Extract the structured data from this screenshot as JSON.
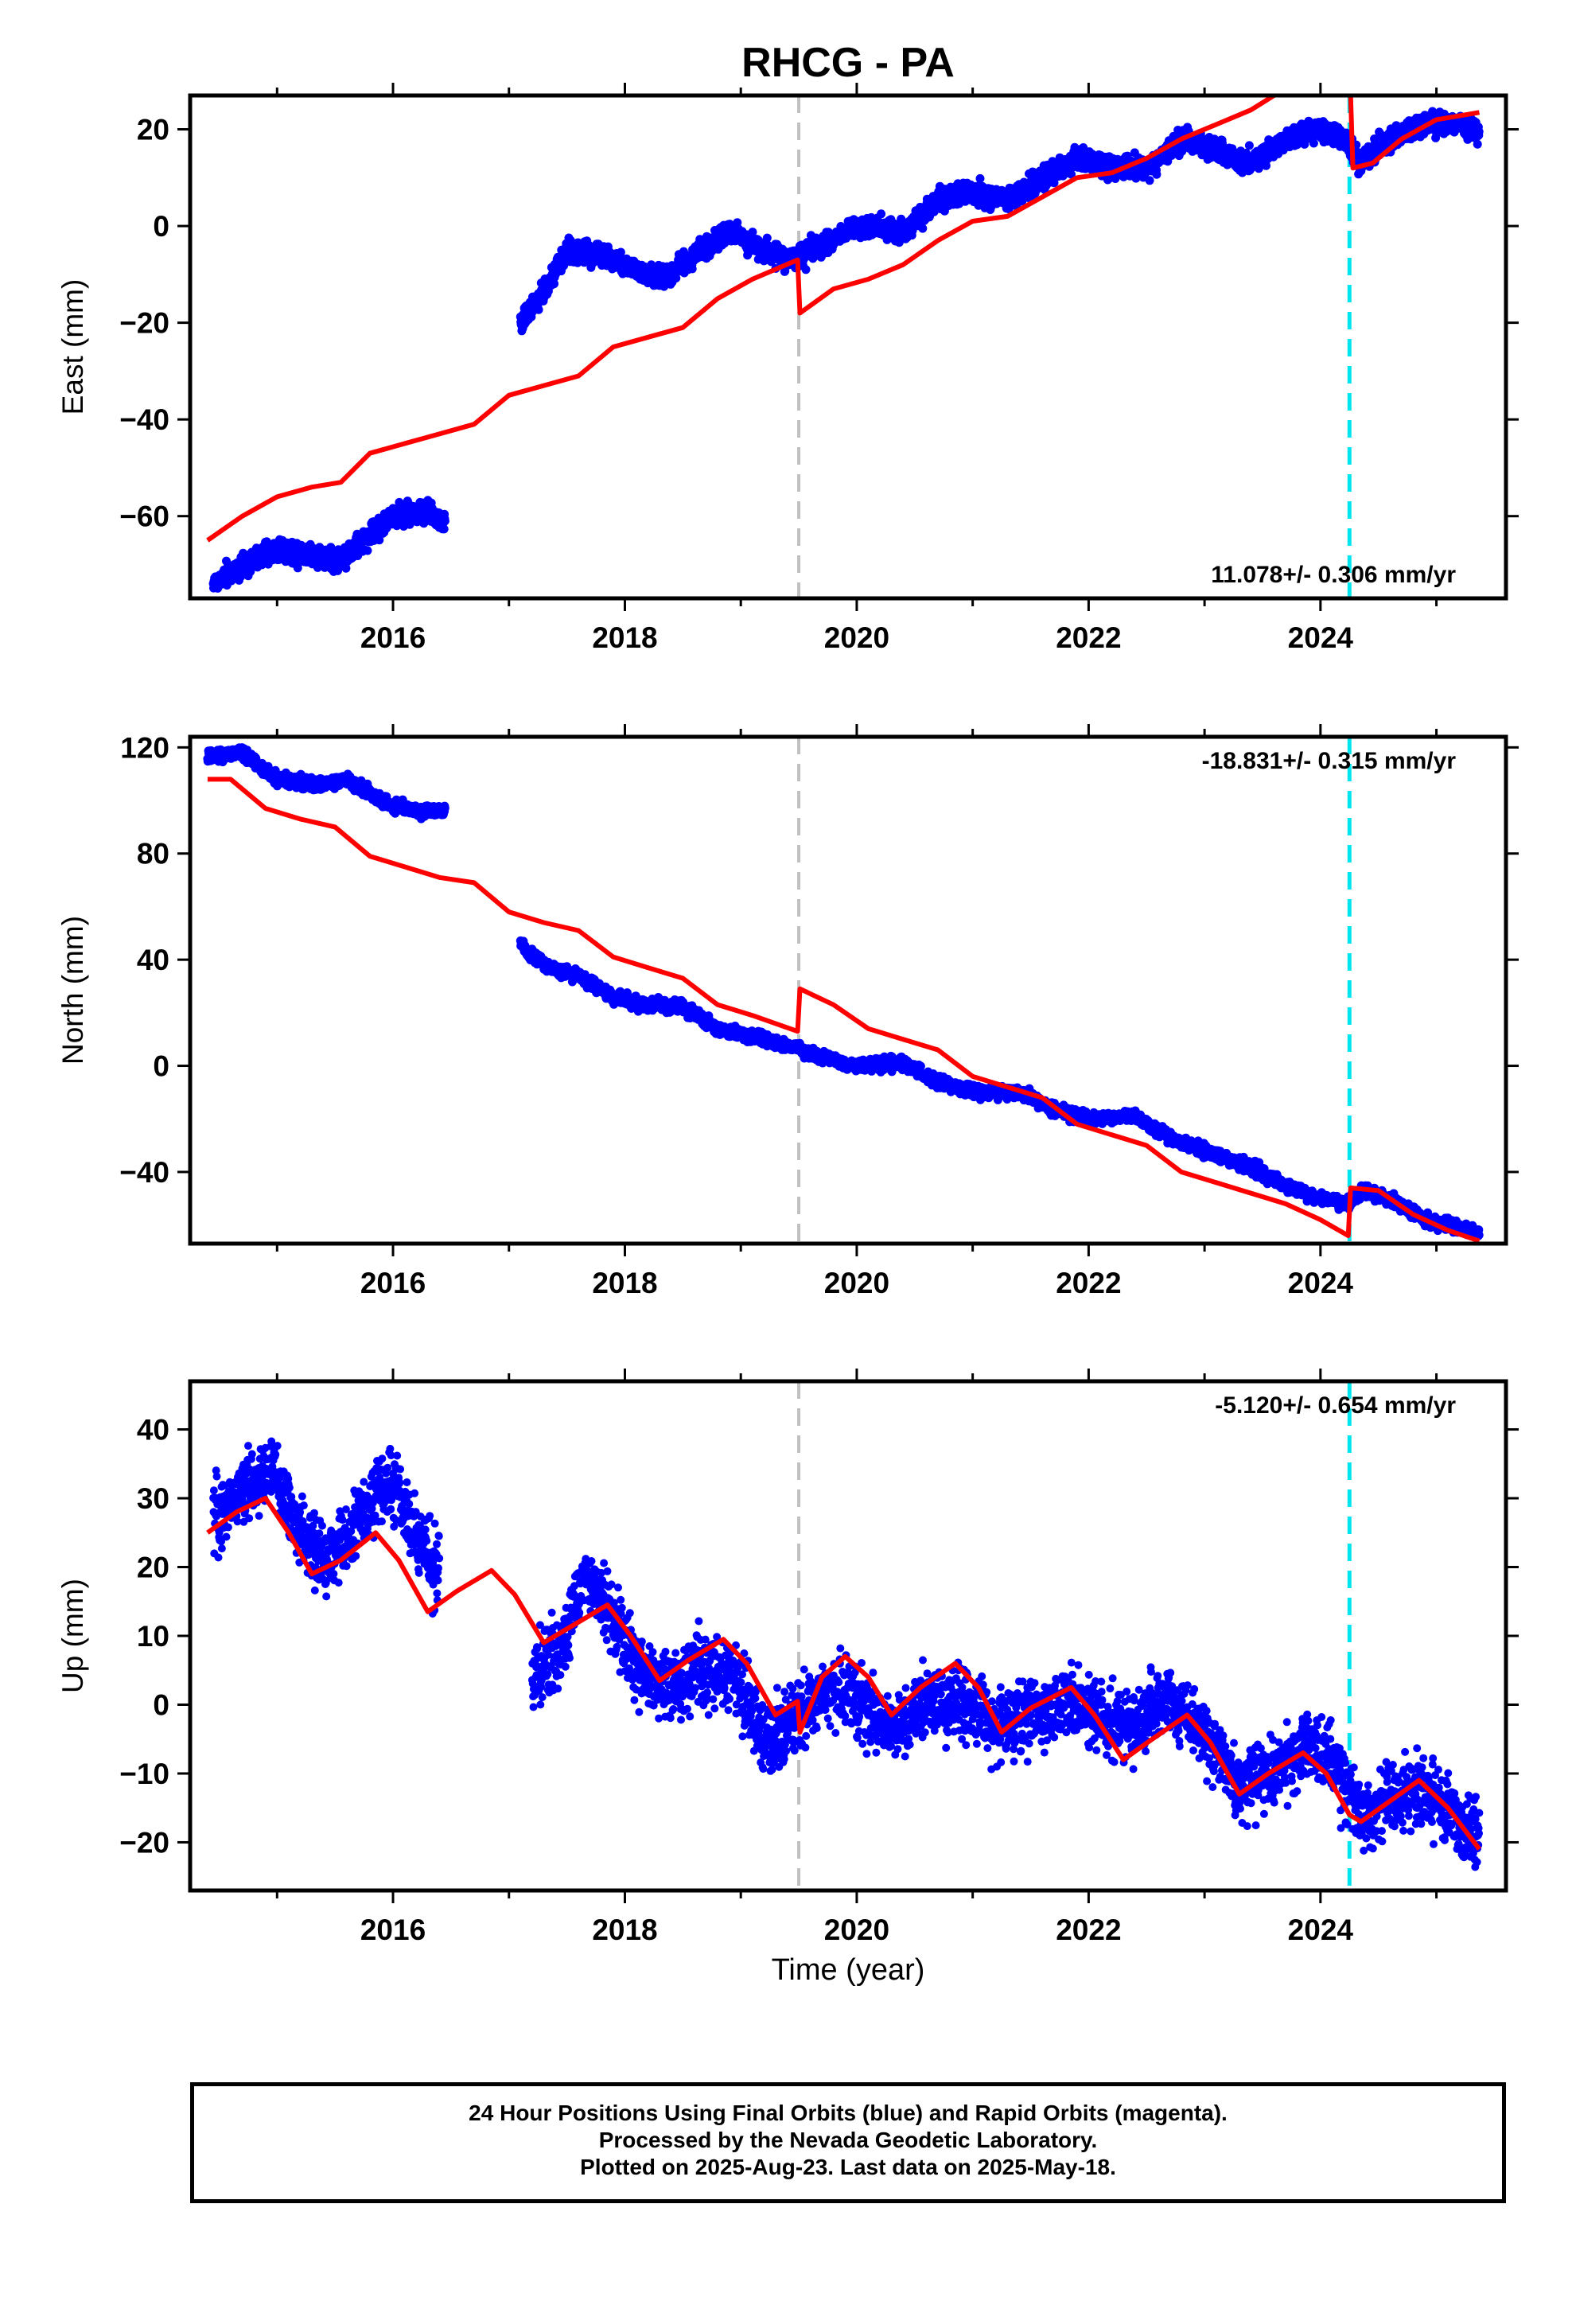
{
  "title": "RHCG - PA",
  "xlabel": "Time (year)",
  "footer": {
    "line1": "24 Hour Positions Using Final Orbits (blue) and Rapid Orbits (magenta).",
    "line2": "Processed by the Nevada Geodetic Laboratory.",
    "line3": "Plotted on 2025-Aug-23. Last data on 2025-May-18."
  },
  "colors": {
    "final_orbits": "#0000ff",
    "model": "#ff0000",
    "event_equipment": "#c0c0c0",
    "event_earthquake": "#00e5ee"
  },
  "chart_data": [
    {
      "type": "scatter",
      "panel": "east",
      "ylabel": "East (mm)",
      "xlim": [
        2014.25,
        2025.6
      ],
      "ylim": [
        -77,
        27
      ],
      "xticks": [
        2016,
        2018,
        2020,
        2022,
        2024
      ],
      "yticks": [
        -60,
        -40,
        -20,
        0,
        20
      ],
      "rate_label": "11.078+/- 0.306 mm/yr",
      "rate_position": "bottom-right",
      "events": [
        {
          "x": 2019.5,
          "kind": "equipment"
        },
        {
          "x": 2024.25,
          "kind": "earthquake"
        }
      ],
      "observations": [
        {
          "x": 2014.45,
          "y": -74
        },
        {
          "x": 2014.7,
          "y": -70
        },
        {
          "x": 2015.0,
          "y": -67
        },
        {
          "x": 2015.3,
          "y": -68
        },
        {
          "x": 2015.55,
          "y": -69
        },
        {
          "x": 2015.8,
          "y": -64
        },
        {
          "x": 2016.0,
          "y": -60
        },
        {
          "x": 2016.2,
          "y": -59
        },
        {
          "x": 2016.45,
          "y": -61
        },
        {
          "x": 2017.1,
          "y": -20
        },
        {
          "x": 2017.3,
          "y": -14
        },
        {
          "x": 2017.5,
          "y": -5
        },
        {
          "x": 2017.8,
          "y": -6
        },
        {
          "x": 2018.0,
          "y": -8
        },
        {
          "x": 2018.3,
          "y": -11
        },
        {
          "x": 2018.6,
          "y": -6
        },
        {
          "x": 2018.9,
          "y": -1
        },
        {
          "x": 2019.2,
          "y": -5
        },
        {
          "x": 2019.45,
          "y": -7
        },
        {
          "x": 2019.7,
          "y": -4
        },
        {
          "x": 2020.0,
          "y": 0
        },
        {
          "x": 2020.4,
          "y": -1
        },
        {
          "x": 2020.7,
          "y": 5
        },
        {
          "x": 2021.0,
          "y": 7
        },
        {
          "x": 2021.3,
          "y": 5
        },
        {
          "x": 2021.6,
          "y": 10
        },
        {
          "x": 2021.9,
          "y": 14
        },
        {
          "x": 2022.2,
          "y": 12
        },
        {
          "x": 2022.5,
          "y": 12
        },
        {
          "x": 2022.8,
          "y": 18
        },
        {
          "x": 2023.1,
          "y": 16
        },
        {
          "x": 2023.4,
          "y": 13
        },
        {
          "x": 2023.7,
          "y": 18
        },
        {
          "x": 2024.0,
          "y": 20
        },
        {
          "x": 2024.2,
          "y": 18
        },
        {
          "x": 2024.35,
          "y": 13
        },
        {
          "x": 2024.6,
          "y": 18
        },
        {
          "x": 2024.9,
          "y": 21
        },
        {
          "x": 2025.2,
          "y": 21
        },
        {
          "x": 2025.37,
          "y": 19
        }
      ],
      "model": [
        {
          "x": 2014.4,
          "y": -65
        },
        {
          "x": 2014.7,
          "y": -60
        },
        {
          "x": 2015.0,
          "y": -56
        },
        {
          "x": 2015.3,
          "y": -54
        },
        {
          "x": 2015.55,
          "y": -53
        },
        {
          "x": 2015.8,
          "y": -47
        },
        {
          "x": 2016.1,
          "y": -45
        },
        {
          "x": 2016.4,
          "y": -43
        },
        {
          "x": 2016.7,
          "y": -41
        },
        {
          "x": 2017.0,
          "y": -35
        },
        {
          "x": 2017.3,
          "y": -33
        },
        {
          "x": 2017.6,
          "y": -31
        },
        {
          "x": 2017.9,
          "y": -25
        },
        {
          "x": 2018.2,
          "y": -23
        },
        {
          "x": 2018.5,
          "y": -21
        },
        {
          "x": 2018.8,
          "y": -15
        },
        {
          "x": 2019.1,
          "y": -11
        },
        {
          "x": 2019.49,
          "y": -7
        },
        {
          "x": 2019.51,
          "y": -18
        },
        {
          "x": 2019.8,
          "y": -13
        },
        {
          "x": 2020.1,
          "y": -11
        },
        {
          "x": 2020.4,
          "y": -8
        },
        {
          "x": 2020.7,
          "y": -3
        },
        {
          "x": 2021.0,
          "y": 1
        },
        {
          "x": 2021.3,
          "y": 2
        },
        {
          "x": 2021.6,
          "y": 6
        },
        {
          "x": 2021.9,
          "y": 10
        },
        {
          "x": 2022.2,
          "y": 11
        },
        {
          "x": 2022.5,
          "y": 14
        },
        {
          "x": 2022.8,
          "y": 18
        },
        {
          "x": 2023.1,
          "y": 21
        },
        {
          "x": 2023.4,
          "y": 24
        },
        {
          "x": 2023.6,
          "y": 27
        }
      ],
      "model_after_event": [
        {
          "x": 2024.26,
          "y": 27
        },
        {
          "x": 2024.28,
          "y": 12
        },
        {
          "x": 2024.45,
          "y": 13
        },
        {
          "x": 2024.7,
          "y": 18
        },
        {
          "x": 2025.0,
          "y": 22
        },
        {
          "x": 2025.37,
          "y": 23.5
        }
      ]
    },
    {
      "type": "scatter",
      "panel": "north",
      "ylabel": "North (mm)",
      "xlim": [
        2014.25,
        2025.6
      ],
      "ylim": [
        -67,
        124
      ],
      "xticks": [
        2016,
        2018,
        2020,
        2022,
        2024
      ],
      "yticks": [
        -40,
        0,
        40,
        80,
        120
      ],
      "rate_label": "-18.831+/- 0.315 mm/yr",
      "rate_position": "top-right",
      "events": [
        {
          "x": 2019.5,
          "kind": "equipment"
        },
        {
          "x": 2024.25,
          "kind": "earthquake"
        }
      ],
      "observations": [
        {
          "x": 2014.4,
          "y": 116
        },
        {
          "x": 2014.7,
          "y": 118
        },
        {
          "x": 2015.0,
          "y": 108
        },
        {
          "x": 2015.3,
          "y": 106
        },
        {
          "x": 2015.6,
          "y": 108
        },
        {
          "x": 2015.9,
          "y": 100
        },
        {
          "x": 2016.2,
          "y": 96
        },
        {
          "x": 2016.45,
          "y": 97
        },
        {
          "x": 2017.1,
          "y": 46
        },
        {
          "x": 2017.3,
          "y": 38
        },
        {
          "x": 2017.6,
          "y": 34
        },
        {
          "x": 2017.9,
          "y": 26
        },
        {
          "x": 2018.2,
          "y": 23
        },
        {
          "x": 2018.5,
          "y": 22
        },
        {
          "x": 2018.8,
          "y": 14
        },
        {
          "x": 2019.1,
          "y": 11
        },
        {
          "x": 2019.45,
          "y": 7
        },
        {
          "x": 2019.7,
          "y": 3
        },
        {
          "x": 2020.0,
          "y": 0
        },
        {
          "x": 2020.4,
          "y": 1
        },
        {
          "x": 2020.7,
          "y": -6
        },
        {
          "x": 2021.0,
          "y": -10
        },
        {
          "x": 2021.4,
          "y": -10
        },
        {
          "x": 2021.7,
          "y": -16
        },
        {
          "x": 2022.0,
          "y": -20
        },
        {
          "x": 2022.4,
          "y": -19
        },
        {
          "x": 2022.7,
          "y": -27
        },
        {
          "x": 2023.0,
          "y": -32
        },
        {
          "x": 2023.4,
          "y": -38
        },
        {
          "x": 2023.7,
          "y": -45
        },
        {
          "x": 2024.0,
          "y": -50
        },
        {
          "x": 2024.25,
          "y": -52
        },
        {
          "x": 2024.35,
          "y": -47
        },
        {
          "x": 2024.6,
          "y": -50
        },
        {
          "x": 2024.9,
          "y": -58
        },
        {
          "x": 2025.2,
          "y": -61
        },
        {
          "x": 2025.37,
          "y": -63
        }
      ],
      "model": [
        {
          "x": 2014.4,
          "y": 108
        },
        {
          "x": 2014.6,
          "y": 108
        },
        {
          "x": 2014.9,
          "y": 97
        },
        {
          "x": 2015.2,
          "y": 93
        },
        {
          "x": 2015.5,
          "y": 90
        },
        {
          "x": 2015.8,
          "y": 79
        },
        {
          "x": 2016.1,
          "y": 75
        },
        {
          "x": 2016.4,
          "y": 71
        },
        {
          "x": 2016.7,
          "y": 69
        },
        {
          "x": 2017.0,
          "y": 58
        },
        {
          "x": 2017.3,
          "y": 54
        },
        {
          "x": 2017.6,
          "y": 51
        },
        {
          "x": 2017.9,
          "y": 41
        },
        {
          "x": 2018.2,
          "y": 37
        },
        {
          "x": 2018.5,
          "y": 33
        },
        {
          "x": 2018.8,
          "y": 23
        },
        {
          "x": 2019.1,
          "y": 19
        },
        {
          "x": 2019.49,
          "y": 13
        },
        {
          "x": 2019.51,
          "y": 29
        },
        {
          "x": 2019.8,
          "y": 23
        },
        {
          "x": 2020.1,
          "y": 14
        },
        {
          "x": 2020.4,
          "y": 10
        },
        {
          "x": 2020.7,
          "y": 6
        },
        {
          "x": 2021.0,
          "y": -4
        },
        {
          "x": 2021.3,
          "y": -8
        },
        {
          "x": 2021.6,
          "y": -12
        },
        {
          "x": 2021.9,
          "y": -22
        },
        {
          "x": 2022.2,
          "y": -26
        },
        {
          "x": 2022.5,
          "y": -30
        },
        {
          "x": 2022.8,
          "y": -40
        },
        {
          "x": 2023.1,
          "y": -44
        },
        {
          "x": 2023.4,
          "y": -48
        },
        {
          "x": 2023.7,
          "y": -52
        },
        {
          "x": 2024.0,
          "y": -58
        },
        {
          "x": 2024.24,
          "y": -64
        },
        {
          "x": 2024.26,
          "y": -46
        },
        {
          "x": 2024.5,
          "y": -47
        },
        {
          "x": 2024.8,
          "y": -56
        },
        {
          "x": 2025.1,
          "y": -62
        },
        {
          "x": 2025.37,
          "y": -66
        }
      ]
    },
    {
      "type": "scatter",
      "panel": "up",
      "ylabel": "Up (mm)",
      "xlim": [
        2014.25,
        2025.6
      ],
      "ylim": [
        -27,
        47
      ],
      "xticks": [
        2016,
        2018,
        2020,
        2022,
        2024
      ],
      "yticks": [
        -20,
        -10,
        0,
        10,
        20,
        30,
        40
      ],
      "rate_label": "-5.120+/- 0.654 mm/yr",
      "rate_position": "top-right",
      "events": [
        {
          "x": 2019.5,
          "kind": "equipment"
        },
        {
          "x": 2024.25,
          "kind": "earthquake"
        }
      ],
      "observations": [
        {
          "x": 2014.45,
          "y": 27
        },
        {
          "x": 2014.7,
          "y": 31
        },
        {
          "x": 2014.95,
          "y": 34
        },
        {
          "x": 2015.2,
          "y": 25
        },
        {
          "x": 2015.4,
          "y": 21
        },
        {
          "x": 2015.6,
          "y": 24
        },
        {
          "x": 2015.85,
          "y": 31
        },
        {
          "x": 2016.0,
          "y": 32
        },
        {
          "x": 2016.2,
          "y": 24
        },
        {
          "x": 2016.4,
          "y": 20
        },
        {
          "x": 2017.2,
          "y": 4
        },
        {
          "x": 2017.45,
          "y": 8
        },
        {
          "x": 2017.65,
          "y": 19
        },
        {
          "x": 2017.85,
          "y": 14
        },
        {
          "x": 2018.1,
          "y": 6
        },
        {
          "x": 2018.4,
          "y": 2
        },
        {
          "x": 2018.7,
          "y": 6
        },
        {
          "x": 2018.95,
          "y": 4
        },
        {
          "x": 2019.2,
          "y": -6
        },
        {
          "x": 2019.45,
          "y": -3
        },
        {
          "x": 2019.75,
          "y": 2
        },
        {
          "x": 2020.0,
          "y": 1
        },
        {
          "x": 2020.3,
          "y": -4
        },
        {
          "x": 2020.6,
          "y": 0
        },
        {
          "x": 2020.9,
          "y": 0
        },
        {
          "x": 2021.2,
          "y": -3
        },
        {
          "x": 2021.5,
          "y": -1
        },
        {
          "x": 2021.8,
          "y": 0
        },
        {
          "x": 2022.1,
          "y": -2
        },
        {
          "x": 2022.4,
          "y": -3
        },
        {
          "x": 2022.7,
          "y": 1
        },
        {
          "x": 2023.0,
          "y": -4
        },
        {
          "x": 2023.3,
          "y": -12
        },
        {
          "x": 2023.6,
          "y": -10
        },
        {
          "x": 2023.9,
          "y": -6
        },
        {
          "x": 2024.15,
          "y": -9
        },
        {
          "x": 2024.35,
          "y": -17
        },
        {
          "x": 2024.6,
          "y": -14
        },
        {
          "x": 2024.85,
          "y": -12
        },
        {
          "x": 2025.1,
          "y": -15
        },
        {
          "x": 2025.37,
          "y": -20
        }
      ],
      "model": [
        {
          "x": 2014.4,
          "y": 25
        },
        {
          "x": 2014.65,
          "y": 28
        },
        {
          "x": 2014.9,
          "y": 30
        },
        {
          "x": 2015.1,
          "y": 25
        },
        {
          "x": 2015.3,
          "y": 19
        },
        {
          "x": 2015.55,
          "y": 21
        },
        {
          "x": 2015.85,
          "y": 25
        },
        {
          "x": 2016.05,
          "y": 21
        },
        {
          "x": 2016.3,
          "y": 13.5
        },
        {
          "x": 2016.55,
          "y": 16.5
        },
        {
          "x": 2016.85,
          "y": 19.5
        },
        {
          "x": 2017.05,
          "y": 16
        },
        {
          "x": 2017.3,
          "y": 9
        },
        {
          "x": 2017.55,
          "y": 11.5
        },
        {
          "x": 2017.85,
          "y": 14.5
        },
        {
          "x": 2018.05,
          "y": 10
        },
        {
          "x": 2018.3,
          "y": 3.5
        },
        {
          "x": 2018.55,
          "y": 6.5
        },
        {
          "x": 2018.85,
          "y": 9.5
        },
        {
          "x": 2019.05,
          "y": 6
        },
        {
          "x": 2019.3,
          "y": -1.5
        },
        {
          "x": 2019.49,
          "y": 0.5
        },
        {
          "x": 2019.51,
          "y": -4
        },
        {
          "x": 2019.7,
          "y": 4
        },
        {
          "x": 2019.9,
          "y": 7
        },
        {
          "x": 2020.1,
          "y": 4
        },
        {
          "x": 2020.3,
          "y": -1.5
        },
        {
          "x": 2020.55,
          "y": 2.5
        },
        {
          "x": 2020.85,
          "y": 6
        },
        {
          "x": 2021.05,
          "y": 2.5
        },
        {
          "x": 2021.25,
          "y": -4
        },
        {
          "x": 2021.5,
          "y": -0.5
        },
        {
          "x": 2021.85,
          "y": 2.5
        },
        {
          "x": 2022.05,
          "y": -1.5
        },
        {
          "x": 2022.3,
          "y": -8
        },
        {
          "x": 2022.55,
          "y": -5
        },
        {
          "x": 2022.85,
          "y": -1.5
        },
        {
          "x": 2023.05,
          "y": -5.5
        },
        {
          "x": 2023.3,
          "y": -13
        },
        {
          "x": 2023.55,
          "y": -10
        },
        {
          "x": 2023.85,
          "y": -7
        },
        {
          "x": 2024.05,
          "y": -10
        },
        {
          "x": 2024.25,
          "y": -16
        },
        {
          "x": 2024.35,
          "y": -17
        },
        {
          "x": 2024.6,
          "y": -14
        },
        {
          "x": 2024.85,
          "y": -11
        },
        {
          "x": 2025.1,
          "y": -15
        },
        {
          "x": 2025.37,
          "y": -21
        }
      ]
    }
  ]
}
